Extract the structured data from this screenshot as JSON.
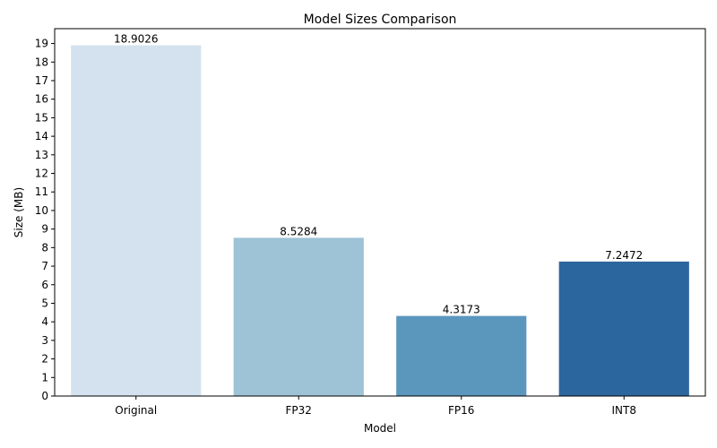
{
  "chart_data": {
    "type": "bar",
    "title": "Model Sizes Comparison",
    "xlabel": "Model",
    "ylabel": "Size (MB)",
    "categories": [
      "Original",
      "FP32",
      "FP16",
      "INT8"
    ],
    "values": [
      18.9026,
      8.5284,
      4.3173,
      7.2472
    ],
    "value_labels": [
      "18.9026",
      "8.5284",
      "4.3173",
      "7.2472"
    ],
    "colors": [
      "#d4e2ef",
      "#9ec2d6",
      "#5b96bd",
      "#2c669e"
    ],
    "ylim": [
      0,
      19.8
    ],
    "yticks": [
      0,
      1,
      2,
      3,
      4,
      5,
      6,
      7,
      8,
      9,
      10,
      11,
      12,
      13,
      14,
      15,
      16,
      17,
      18,
      19
    ],
    "grid": false,
    "legend": "none"
  }
}
